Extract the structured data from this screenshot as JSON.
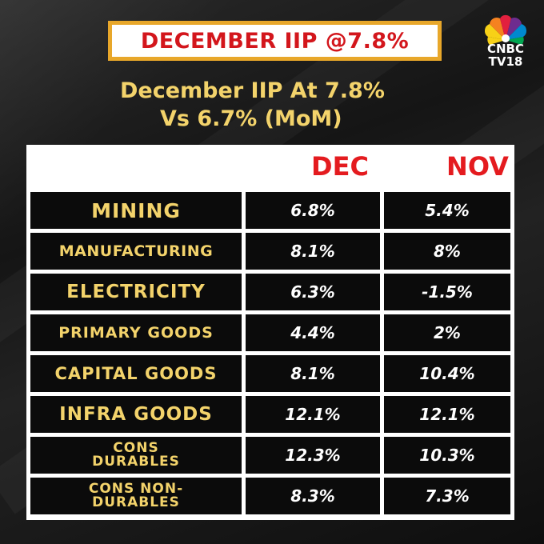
{
  "headline": "DECEMBER IIP @7.8%",
  "brand": {
    "line1": "CNBC",
    "line2": "TV18"
  },
  "subtitle": {
    "line1": "December IIP At 7.8%",
    "line2": "Vs 6.7% (MoM)"
  },
  "table": {
    "columns": [
      "DEC",
      "NOV"
    ],
    "rows": [
      {
        "label": "MINING",
        "dec": "6.8%",
        "nov": "5.4%"
      },
      {
        "label": "MANUFACTURING",
        "dec": "8.1%",
        "nov": "8%"
      },
      {
        "label": "ELECTRICITY",
        "dec": "6.3%",
        "nov": "-1.5%"
      },
      {
        "label": "PRIMARY GOODS",
        "dec": "4.4%",
        "nov": "2%"
      },
      {
        "label": "CAPITAL GOODS",
        "dec": "8.1%",
        "nov": "10.4%"
      },
      {
        "label": "INFRA GOODS",
        "dec": "12.1%",
        "nov": "12.1%"
      },
      {
        "label_line1": "CONS",
        "label_line2": "DURABLES",
        "dec": "12.3%",
        "nov": "10.3%"
      },
      {
        "label_line1": "CONS NON-",
        "label_line2": "DURABLES",
        "dec": "8.3%",
        "nov": "7.3%"
      }
    ]
  },
  "colors": {
    "headline_red": "#d3161c",
    "header_red": "#e41b1f",
    "label_yellow": "#f3d36b",
    "border_orange": "#e8a72a"
  }
}
